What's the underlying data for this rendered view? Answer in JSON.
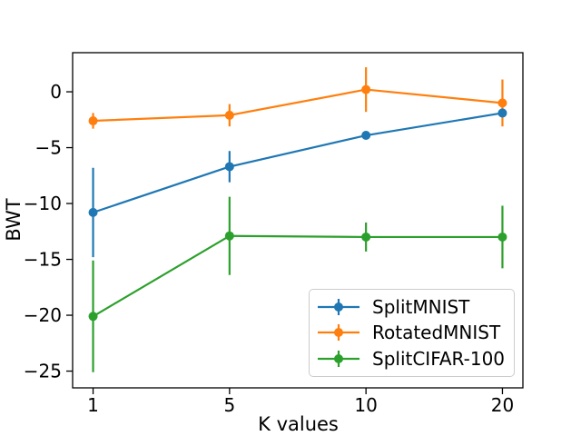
{
  "figure": {
    "background": "#ffffff",
    "text_color": "#000000"
  },
  "chart_data": {
    "type": "line",
    "subtype": "errorbar",
    "title": "",
    "xlabel": "K values",
    "ylabel": "BWT",
    "x_categories": [
      "1",
      "5",
      "10",
      "20"
    ],
    "x_values": [
      1,
      5,
      10,
      20
    ],
    "x_spacing": "categorical-equal",
    "yticks": [
      0,
      -5,
      -10,
      -15,
      -20,
      -25
    ],
    "ylim": [
      -26.5,
      3.5
    ],
    "xlim_index": [
      -0.15,
      3.15
    ],
    "grid": false,
    "legend_position": "lower right",
    "marker": "o",
    "error_caps": false,
    "series": [
      {
        "name": "SplitMNIST",
        "color": "#1f77b4",
        "values": [
          -10.8,
          -6.7,
          -3.9,
          -1.9
        ],
        "errors": [
          4.0,
          1.4,
          0.2,
          0.3
        ]
      },
      {
        "name": "RotatedMNIST",
        "color": "#ff7f0e",
        "values": [
          -2.6,
          -2.1,
          0.2,
          -1.0
        ],
        "errors": [
          0.7,
          1.0,
          2.0,
          2.1
        ]
      },
      {
        "name": "SplitCIFAR-100",
        "color": "#2ca02c",
        "values": [
          -20.1,
          -12.9,
          -13.0,
          -13.0
        ],
        "errors": [
          5.0,
          3.5,
          1.3,
          2.8
        ]
      }
    ]
  }
}
